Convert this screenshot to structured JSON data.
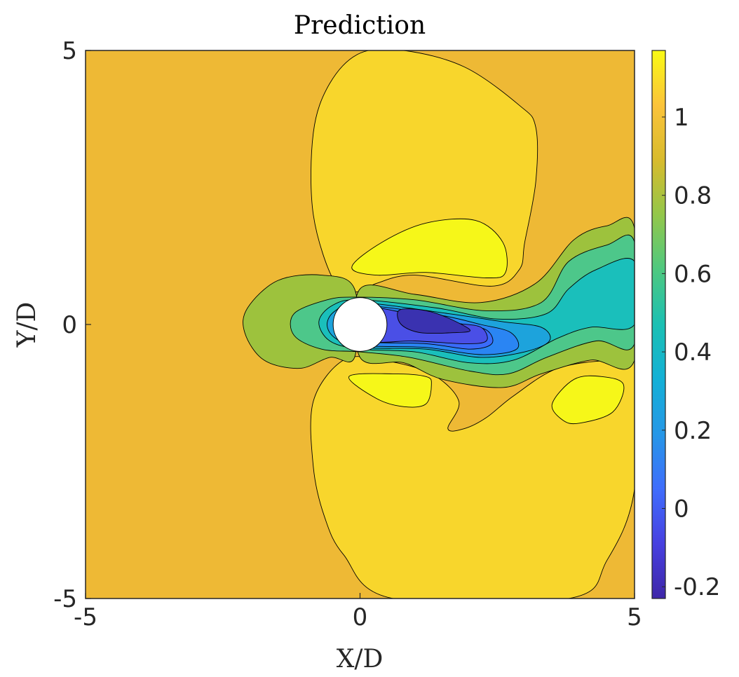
{
  "chart_data": {
    "type": "contour",
    "title": "Prediction",
    "xlabel": "X/D",
    "ylabel": "Y/D",
    "xlim": [
      -5,
      5
    ],
    "ylim": [
      -5,
      5
    ],
    "xticks": [
      "-5",
      "0",
      "5"
    ],
    "yticks": [
      "-5",
      "0",
      "5"
    ],
    "colorbar": {
      "range": [
        -0.23,
        1.17
      ],
      "ticks": [
        -0.2,
        0,
        0.2,
        0.4,
        0.6,
        0.8,
        1
      ],
      "tick_labels": [
        "-0.2",
        "0",
        "0.2",
        "0.4",
        "0.6",
        "0.8",
        "1"
      ],
      "colormap": "parula"
    },
    "obstacle": {
      "shape": "circle",
      "center": [
        0,
        0
      ],
      "diameter": 1
    },
    "contour_levels": [
      -0.2,
      -0.1,
      0.0,
      0.1,
      0.2,
      0.3,
      0.4,
      0.5,
      0.6,
      0.7,
      0.8,
      0.9,
      1.0,
      1.05,
      1.1
    ],
    "background_value": 1.0,
    "regions": [
      {
        "name": "upper-high-lobe",
        "value": 1.08
      },
      {
        "name": "lower-high-lobe",
        "value": 1.08
      },
      {
        "name": "upper-peak",
        "value": 1.15
      },
      {
        "name": "lower-peak-near",
        "value": 1.15
      },
      {
        "name": "lower-peak-far",
        "value": 1.15
      },
      {
        "name": "stagnation-front",
        "value": 0.75
      },
      {
        "name": "wake-outer",
        "value": 0.75
      },
      {
        "name": "wake-mid",
        "value": 0.6
      },
      {
        "name": "wake-inner",
        "value": 0.45
      },
      {
        "name": "wake-core",
        "value": 0.3
      },
      {
        "name": "wake-low",
        "value": 0.1
      },
      {
        "name": "wake-min",
        "value": -0.2
      }
    ]
  },
  "colors": {
    "background": "#EEB935",
    "high": "#F8D62C",
    "peak": "#F6F719",
    "green": "#9DC23D",
    "teal_green": "#4DC78A",
    "cyan": "#1ABFBB",
    "light_blue": "#1DA3DC",
    "blue": "#2A85F3",
    "mid_blue": "#3A6BF9",
    "indigo": "#4A4FE6",
    "dark_indigo": "#3A32B0"
  }
}
